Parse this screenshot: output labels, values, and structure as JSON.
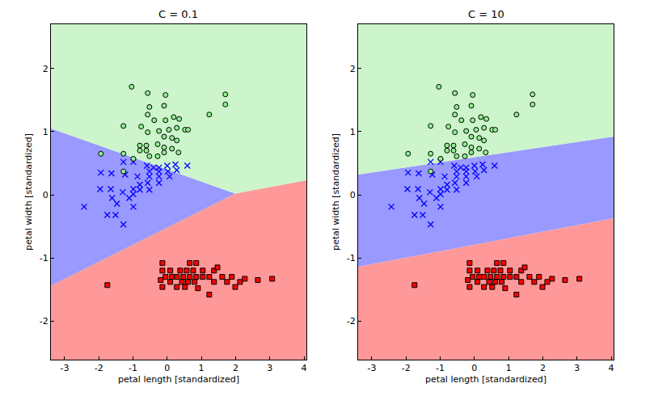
{
  "chart_data": [
    {
      "type": "scatter",
      "title": "C = 0.1",
      "x_label": "petal length [standardized]",
      "y_label": "petal width [standardized]",
      "xlim": [
        -3.4,
        4.07
      ],
      "ylim": [
        -2.61,
        2.7
      ],
      "xticks": [
        -3,
        -2,
        -1,
        0,
        1,
        2,
        3,
        4
      ],
      "yticks": [
        -2,
        -1,
        0,
        1,
        2
      ],
      "grid": false,
      "regions": [
        {
          "color": "#ff9999",
          "x": [
            -3.4,
            1.99,
            4.07,
            4.07,
            -3.4
          ],
          "y": [
            -1.44,
            0.02,
            0.23,
            -2.61,
            -2.61
          ]
        },
        {
          "color": "#9999ff",
          "x": [
            -3.4,
            1.99,
            -3.4
          ],
          "y": [
            1.05,
            0.02,
            -1.44
          ]
        },
        {
          "color": "#ccf5cc",
          "x": [
            -3.4,
            1.99,
            4.07,
            4.07,
            -3.4
          ],
          "y": [
            1.05,
            0.02,
            0.23,
            2.7,
            2.7
          ]
        }
      ],
      "series": [
        {
          "color": "#ff0000",
          "marker": "square",
          "x": [
            -1.75,
            -0.14,
            0.66,
            0.85,
            -0.14,
            0.09,
            0.38,
            0.57,
            0.76,
            1.04,
            1.37,
            -0.05,
            0.14,
            0.28,
            0.47,
            0.66,
            0.85,
            1.04,
            1.23,
            1.61,
            1.89,
            2.27,
            2.65,
            3.07,
            -0.19,
            0.09,
            0.43,
            0.61,
            0.8,
            1.37,
            1.75,
            2.13,
            -0.14,
            0.28,
            0.52,
            0.9,
            1.99,
            1.23,
            1.47
          ],
          "y": [
            -1.43,
            -1.08,
            -1.08,
            -1.08,
            -1.2,
            -1.2,
            -1.2,
            -1.2,
            -1.2,
            -1.2,
            -1.2,
            -1.3,
            -1.3,
            -1.3,
            -1.3,
            -1.3,
            -1.3,
            -1.3,
            -1.3,
            -1.3,
            -1.3,
            -1.33,
            -1.35,
            -1.33,
            -1.35,
            -1.38,
            -1.38,
            -1.38,
            -1.38,
            -1.38,
            -1.38,
            -1.38,
            -1.46,
            -1.46,
            -1.46,
            -1.48,
            -1.46,
            -1.58,
            -1.15
          ]
        },
        {
          "color": "#0000ff",
          "marker": "x",
          "x": [
            -1.94,
            -1.28,
            -0.99,
            -0.59,
            -0.4,
            -0.24,
            0,
            0.24,
            0.59,
            -0.52,
            -0.24,
            0.02,
            0.28,
            -1.63,
            -1.23,
            -0.87,
            -0.52,
            -0.24,
            0.07,
            -0.8,
            -0.57,
            -0.24,
            -1.96,
            -1.65,
            -0.99,
            -0.8,
            -0.52,
            -1.3,
            -0.99,
            -1.61,
            -1.11,
            -1.47,
            -2.43,
            -1.75,
            -1.51,
            -1.28,
            -0.99
          ],
          "y": [
            0.35,
            0.52,
            0.52,
            0.46,
            0.43,
            0.43,
            0.46,
            0.48,
            0.46,
            0.37,
            0.37,
            0.37,
            0.39,
            0.34,
            0.32,
            0.29,
            0.29,
            0.29,
            0.29,
            0.16,
            0.19,
            0.19,
            0.09,
            0.09,
            0.09,
            0.08,
            0.08,
            0.04,
            0.01,
            -0.05,
            -0.05,
            -0.14,
            -0.19,
            -0.32,
            -0.32,
            -0.47,
            -0.19
          ]
        },
        {
          "color": "#90ee90",
          "marker": "circle",
          "x": [
            -1.04,
            -0.57,
            -0.05,
            1.7,
            1.7,
            -0.52,
            -0.09,
            1.23,
            -0.57,
            0.19,
            0.35,
            -0.38,
            -0.05,
            -1.28,
            -0.76,
            -0.57,
            -0.24,
            0.05,
            0.28,
            0.52,
            0.61,
            -0.09,
            0.14,
            0.28,
            -0.8,
            -0.61,
            -0.28,
            -0.09,
            0.14,
            -0.8,
            -0.61,
            -0.09,
            0.33,
            -1.94,
            -1.28,
            -0.52,
            -0.28,
            -0.99,
            -1.28
          ],
          "y": [
            1.71,
            1.61,
            1.58,
            1.59,
            1.43,
            1.39,
            1.41,
            1.27,
            1.27,
            1.23,
            1.2,
            1.18,
            1.18,
            1.09,
            1.08,
            0.99,
            1.01,
            1.03,
            1.06,
            1.03,
            1.03,
            0.92,
            0.9,
            0.86,
            0.78,
            0.78,
            0.8,
            0.75,
            0.73,
            0.7,
            0.7,
            0.67,
            0.67,
            0.65,
            0.65,
            0.61,
            0.61,
            0.57,
            0.37
          ]
        }
      ]
    },
    {
      "type": "scatter",
      "title": "C = 10",
      "x_label": "petal length [standardized]",
      "y_label": "petal width [standardized]",
      "xlim": [
        -3.4,
        4.07
      ],
      "ylim": [
        -2.61,
        2.7
      ],
      "xticks": [
        -3,
        -2,
        -1,
        0,
        1,
        2,
        3,
        4
      ],
      "yticks": [
        -2,
        -1,
        0,
        1,
        2
      ],
      "grid": false,
      "regions": [
        {
          "color": "#ff9999",
          "x": [
            -3.4,
            4.07,
            4.07,
            -3.4
          ],
          "y": [
            -1.14,
            -0.37,
            -2.61,
            -2.61
          ]
        },
        {
          "color": "#9999ff",
          "x": [
            -3.4,
            4.07,
            4.07,
            -3.4
          ],
          "y": [
            0.32,
            0.92,
            -0.37,
            -1.14
          ]
        },
        {
          "color": "#ccf5cc",
          "x": [
            -3.4,
            4.07,
            4.07,
            -3.4
          ],
          "y": [
            0.32,
            0.92,
            2.7,
            2.7
          ]
        }
      ],
      "series": [
        {
          "color": "#ff0000",
          "marker": "square",
          "x": [
            -1.75,
            -0.14,
            0.66,
            0.85,
            -0.14,
            0.09,
            0.38,
            0.57,
            0.76,
            1.04,
            1.37,
            -0.05,
            0.14,
            0.28,
            0.47,
            0.66,
            0.85,
            1.04,
            1.23,
            1.61,
            1.89,
            2.27,
            2.65,
            3.07,
            -0.19,
            0.09,
            0.43,
            0.61,
            0.8,
            1.37,
            1.75,
            2.13,
            -0.14,
            0.28,
            0.52,
            0.9,
            1.99,
            1.23,
            1.47
          ],
          "y": [
            -1.43,
            -1.08,
            -1.08,
            -1.08,
            -1.2,
            -1.2,
            -1.2,
            -1.2,
            -1.2,
            -1.2,
            -1.2,
            -1.3,
            -1.3,
            -1.3,
            -1.3,
            -1.3,
            -1.3,
            -1.3,
            -1.3,
            -1.3,
            -1.3,
            -1.33,
            -1.35,
            -1.33,
            -1.35,
            -1.38,
            -1.38,
            -1.38,
            -1.38,
            -1.38,
            -1.38,
            -1.38,
            -1.46,
            -1.46,
            -1.46,
            -1.48,
            -1.46,
            -1.58,
            -1.15
          ]
        },
        {
          "color": "#0000ff",
          "marker": "x",
          "x": [
            -1.94,
            -1.28,
            -0.99,
            -0.59,
            -0.4,
            -0.24,
            0,
            0.24,
            0.59,
            -0.52,
            -0.24,
            0.02,
            0.28,
            -1.63,
            -1.23,
            -0.87,
            -0.52,
            -0.24,
            0.07,
            -0.8,
            -0.57,
            -0.24,
            -1.96,
            -1.65,
            -0.99,
            -0.8,
            -0.52,
            -1.3,
            -0.99,
            -1.61,
            -1.11,
            -1.47,
            -2.43,
            -1.75,
            -1.51,
            -1.28,
            -0.99
          ],
          "y": [
            0.35,
            0.52,
            0.52,
            0.46,
            0.43,
            0.43,
            0.46,
            0.48,
            0.46,
            0.37,
            0.37,
            0.37,
            0.39,
            0.34,
            0.32,
            0.29,
            0.29,
            0.29,
            0.29,
            0.16,
            0.19,
            0.19,
            0.09,
            0.09,
            0.09,
            0.08,
            0.08,
            0.04,
            0.01,
            -0.05,
            -0.05,
            -0.14,
            -0.19,
            -0.32,
            -0.32,
            -0.47,
            -0.19
          ]
        },
        {
          "color": "#90ee90",
          "marker": "circle",
          "x": [
            -1.04,
            -0.57,
            -0.05,
            1.7,
            1.7,
            -0.52,
            -0.09,
            1.23,
            -0.57,
            0.19,
            0.35,
            -0.38,
            -0.05,
            -1.28,
            -0.76,
            -0.57,
            -0.24,
            0.05,
            0.28,
            0.52,
            0.61,
            -0.09,
            0.14,
            0.28,
            -0.8,
            -0.61,
            -0.28,
            -0.09,
            0.14,
            -0.8,
            -0.61,
            -0.09,
            0.33,
            -1.94,
            -1.28,
            -0.52,
            -0.28,
            -0.99,
            -1.28
          ],
          "y": [
            1.71,
            1.61,
            1.58,
            1.59,
            1.43,
            1.39,
            1.41,
            1.27,
            1.27,
            1.23,
            1.2,
            1.18,
            1.18,
            1.09,
            1.08,
            0.99,
            1.01,
            1.03,
            1.06,
            1.03,
            1.03,
            0.92,
            0.9,
            0.86,
            0.78,
            0.78,
            0.8,
            0.75,
            0.73,
            0.7,
            0.7,
            0.67,
            0.67,
            0.65,
            0.65,
            0.61,
            0.61,
            0.57,
            0.37
          ]
        }
      ]
    }
  ]
}
